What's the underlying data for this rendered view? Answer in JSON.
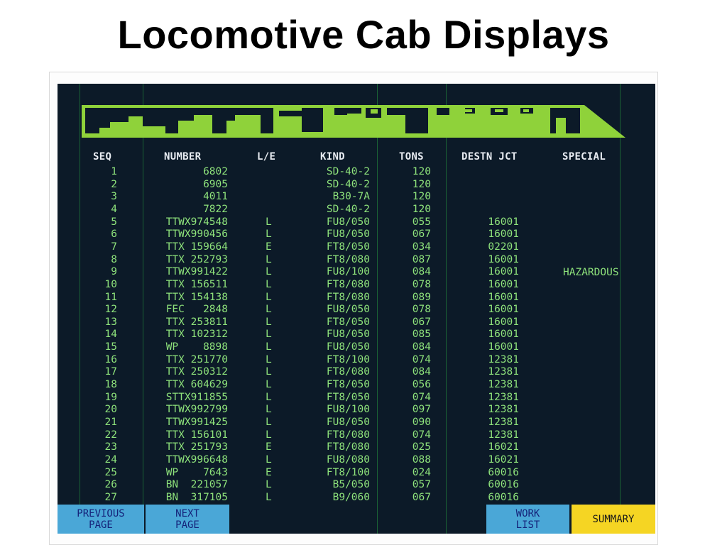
{
  "title": "Locomotive Cab Displays",
  "colors": {
    "screen_bg": "#0c1a28",
    "text_green": "#8ee27b",
    "header_white": "#e8ecf2",
    "banner_green": "#8fd23a",
    "button_blue": "#4aa7d7",
    "button_yellow": "#f5d523"
  },
  "columns": {
    "seq": "SEQ",
    "number": "NUMBER",
    "le": "L/E",
    "kind": "KIND",
    "tons": "TONS",
    "destn": "DESTN JCT",
    "special": "SPECIAL"
  },
  "rows": [
    {
      "seq": "1",
      "number": "6802",
      "le": "",
      "kind": "SD-40-2",
      "tons": "120",
      "destn": "",
      "special": ""
    },
    {
      "seq": "2",
      "number": "6905",
      "le": "",
      "kind": "SD-40-2",
      "tons": "120",
      "destn": "",
      "special": ""
    },
    {
      "seq": "3",
      "number": "4011",
      "le": "",
      "kind": "B30-7A",
      "tons": "120",
      "destn": "",
      "special": ""
    },
    {
      "seq": "4",
      "number": "7822",
      "le": "",
      "kind": "SD-40-2",
      "tons": "120",
      "destn": "",
      "special": ""
    },
    {
      "seq": "5",
      "number": "TTWX974548",
      "le": "L",
      "kind": "FU8/050",
      "tons": "055",
      "destn": "16001",
      "special": ""
    },
    {
      "seq": "6",
      "number": "TTWX990456",
      "le": "L",
      "kind": "FU8/050",
      "tons": "067",
      "destn": "16001",
      "special": ""
    },
    {
      "seq": "7",
      "number": "TTX 159664",
      "le": "E",
      "kind": "FT8/050",
      "tons": "034",
      "destn": "02201",
      "special": ""
    },
    {
      "seq": "8",
      "number": "TTX 252793",
      "le": "L",
      "kind": "FT8/080",
      "tons": "087",
      "destn": "16001",
      "special": ""
    },
    {
      "seq": "9",
      "number": "TTWX991422",
      "le": "L",
      "kind": "FU8/100",
      "tons": "084",
      "destn": "16001",
      "special": "HAZARDOUS"
    },
    {
      "seq": "10",
      "number": "TTX 156511",
      "le": "L",
      "kind": "FT8/080",
      "tons": "078",
      "destn": "16001",
      "special": ""
    },
    {
      "seq": "11",
      "number": "TTX 154138",
      "le": "L",
      "kind": "FT8/080",
      "tons": "089",
      "destn": "16001",
      "special": ""
    },
    {
      "seq": "12",
      "number": "FEC   2848",
      "le": "L",
      "kind": "FU8/050",
      "tons": "078",
      "destn": "16001",
      "special": ""
    },
    {
      "seq": "13",
      "number": "TTX 253811",
      "le": "L",
      "kind": "FT8/050",
      "tons": "067",
      "destn": "16001",
      "special": ""
    },
    {
      "seq": "14",
      "number": "TTX 102312",
      "le": "L",
      "kind": "FU8/050",
      "tons": "085",
      "destn": "16001",
      "special": ""
    },
    {
      "seq": "15",
      "number": "WP    8898",
      "le": "L",
      "kind": "FU8/050",
      "tons": "084",
      "destn": "16001",
      "special": ""
    },
    {
      "seq": "16",
      "number": "TTX 251770",
      "le": "L",
      "kind": "FT8/100",
      "tons": "074",
      "destn": "12381",
      "special": ""
    },
    {
      "seq": "17",
      "number": "TTX 250312",
      "le": "L",
      "kind": "FT8/080",
      "tons": "084",
      "destn": "12381",
      "special": ""
    },
    {
      "seq": "18",
      "number": "TTX 604629",
      "le": "L",
      "kind": "FT8/050",
      "tons": "056",
      "destn": "12381",
      "special": ""
    },
    {
      "seq": "19",
      "number": "STTX911855",
      "le": "L",
      "kind": "FT8/050",
      "tons": "074",
      "destn": "12381",
      "special": ""
    },
    {
      "seq": "20",
      "number": "TTWX992799",
      "le": "L",
      "kind": "FU8/100",
      "tons": "097",
      "destn": "12381",
      "special": ""
    },
    {
      "seq": "21",
      "number": "TTWX991425",
      "le": "L",
      "kind": "FU8/050",
      "tons": "090",
      "destn": "12381",
      "special": ""
    },
    {
      "seq": "22",
      "number": "TTX 156101",
      "le": "L",
      "kind": "FT8/080",
      "tons": "074",
      "destn": "12381",
      "special": ""
    },
    {
      "seq": "23",
      "number": "TTX 251793",
      "le": "E",
      "kind": "FT8/080",
      "tons": "025",
      "destn": "16021",
      "special": ""
    },
    {
      "seq": "24",
      "number": "TTWX996648",
      "le": "L",
      "kind": "FU8/080",
      "tons": "088",
      "destn": "16021",
      "special": ""
    },
    {
      "seq": "25",
      "number": "WP    7643",
      "le": "E",
      "kind": "FT8/100",
      "tons": "024",
      "destn": "60016",
      "special": ""
    },
    {
      "seq": "26",
      "number": "BN  221057",
      "le": "L",
      "kind": "B5/050",
      "tons": "057",
      "destn": "60016",
      "special": ""
    },
    {
      "seq": "27",
      "number": "BN  317105",
      "le": "L",
      "kind": "B9/060",
      "tons": "067",
      "destn": "60016",
      "special": ""
    }
  ],
  "buttons": {
    "previous": "PREVIOUS\nPAGE",
    "next": "NEXT\nPAGE",
    "work_list": "WORK\nLIST",
    "summary": "SUMMARY"
  }
}
